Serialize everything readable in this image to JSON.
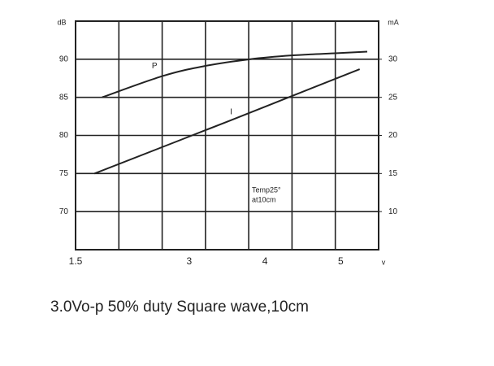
{
  "chart_data": {
    "type": "line",
    "x_label": "v",
    "y_label": "dB",
    "y2_label": "mA",
    "xlim": [
      1.5,
      5.5
    ],
    "xticks": [
      1.5,
      3,
      4,
      5
    ],
    "ylim": [
      65,
      95
    ],
    "yticks": [
      70,
      75,
      80,
      85,
      90
    ],
    "y2lim": [
      5,
      35
    ],
    "y2ticks": [
      10,
      15,
      20,
      25,
      30
    ],
    "grid": true,
    "series": [
      {
        "name": "P",
        "color": "#222222",
        "x": [
          1.85,
          2.65,
          3.2,
          3.8,
          4.35,
          4.95,
          5.35
        ],
        "values": [
          85,
          87.8,
          89.1,
          90,
          90.5,
          90.8,
          91
        ]
      },
      {
        "name": "I",
        "color": "#222222",
        "axis": "y2",
        "x": [
          1.75,
          3.5,
          5.25
        ],
        "values": [
          15,
          21.8,
          28.7
        ]
      }
    ],
    "annotations": [
      "Temp25°",
      "at10cm"
    ],
    "caption": "3.0Vo-p 50% duty Square wave,10cm"
  }
}
